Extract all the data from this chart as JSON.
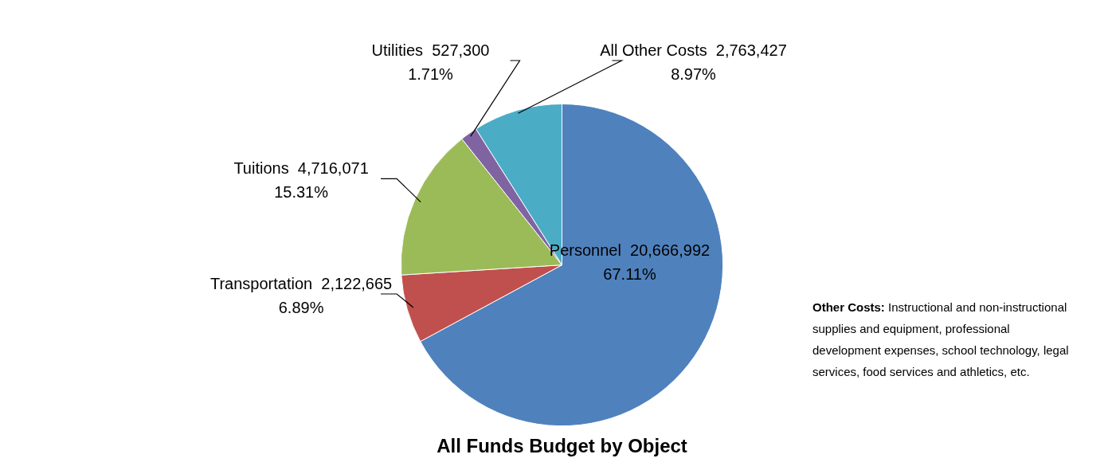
{
  "chart_data": {
    "type": "pie",
    "title": "All Funds Budget by Object",
    "categories": [
      "Personnel  20,666,992",
      "Transportation  2,122,665",
      "Tuitions  4,716,071",
      "Utilities  527,300",
      "All Other Costs  2,763,427"
    ],
    "values": [
      67.11,
      6.89,
      15.31,
      1.71,
      8.97
    ],
    "value_labels": [
      "67.11%",
      "6.89%",
      "15.31%",
      "1.71%",
      "8.97%"
    ],
    "colors": [
      "#4f81bd",
      "#c0504d",
      "#9bbb59",
      "#8064a2",
      "#4bacc6"
    ],
    "annotations": [
      "Other Costs:  Instructional and non-instructional supplies and equipment, professional development expenses, school technology, legal services, food services and athletics, etc."
    ]
  }
}
